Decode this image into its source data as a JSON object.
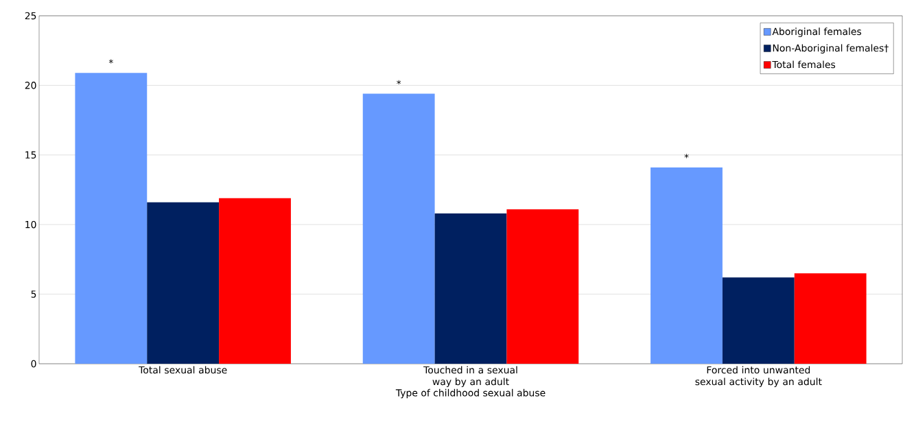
{
  "chart_data": {
    "type": "bar",
    "xlabel": "Type of childhood sexual abuse",
    "categories": [
      "Total sexual abuse",
      "Touched in a sexual way by an adult",
      "Forced into unwanted sexual activity by an adult"
    ],
    "series": [
      {
        "name": "Aboriginal females",
        "color": "#6699ff",
        "values": [
          20.9,
          19.4,
          14.1
        ],
        "value_labels": [
          "*",
          "*",
          "*"
        ]
      },
      {
        "name": "Non-Aboriginal females†",
        "color": "#002060",
        "values": [
          11.6,
          10.8,
          6.2
        ]
      },
      {
        "name": "Total females",
        "color": "#ff0000",
        "values": [
          11.9,
          11.1,
          6.5
        ]
      }
    ],
    "ylim": [
      0,
      25
    ],
    "yticks": [
      0,
      5,
      10,
      15,
      20,
      25
    ],
    "grid": "y",
    "legend": "top right"
  }
}
